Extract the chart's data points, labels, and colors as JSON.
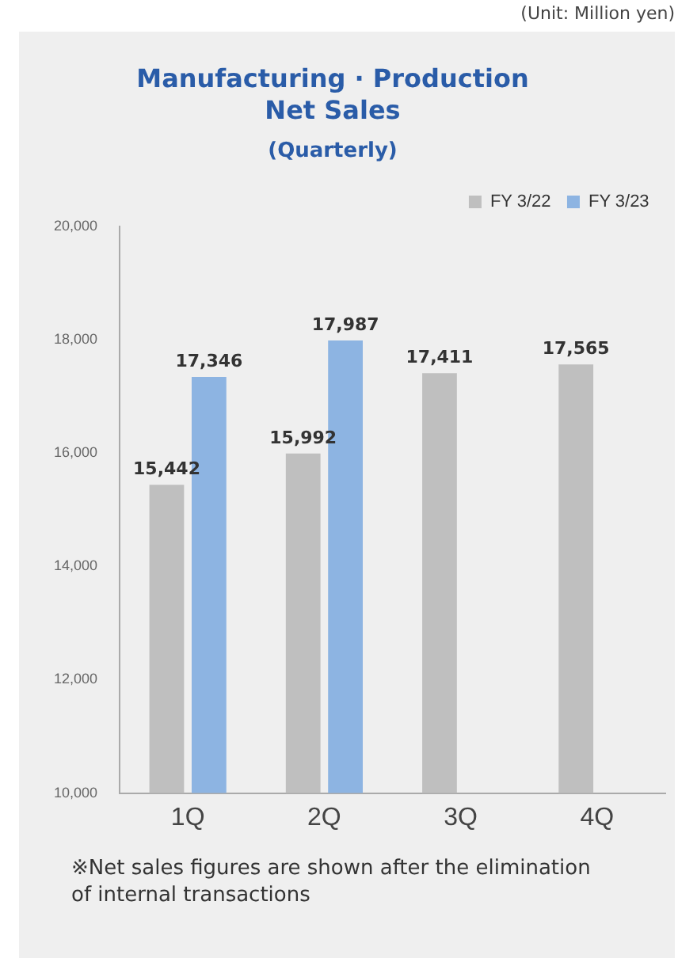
{
  "chart_data": {
    "type": "bar",
    "title": "Manufacturing · Production Net Sales",
    "subtitle": "(Quarterly)",
    "annotations": [
      "(Unit: Million yen)",
      "※Net sales figures are shown after the elimination of internal transactions"
    ],
    "categories": [
      "1Q",
      "2Q",
      "3Q",
      "4Q"
    ],
    "series": [
      {
        "name": "FY 3/22",
        "color": "#bfbfbf",
        "values": [
          15442,
          15992,
          17411,
          17565
        ],
        "value_labels": [
          "15,442",
          "15,992",
          "17,411",
          "17,565"
        ]
      },
      {
        "name": "FY 3/23",
        "color": "#8db4e2",
        "values": [
          17346,
          17987,
          null,
          null
        ],
        "value_labels": [
          "17,346",
          "17,987",
          null,
          null
        ]
      }
    ],
    "ylim": [
      10000,
      20000
    ],
    "yticks": [
      {
        "value": 10000,
        "label": "10,000"
      },
      {
        "value": 12000,
        "label": "12,000"
      },
      {
        "value": 14000,
        "label": "14,000"
      },
      {
        "value": 16000,
        "label": "16,000"
      },
      {
        "value": 18000,
        "label": "18,000"
      },
      {
        "value": 20000,
        "label": "20,000"
      }
    ],
    "grid": false,
    "legend": "top right"
  }
}
